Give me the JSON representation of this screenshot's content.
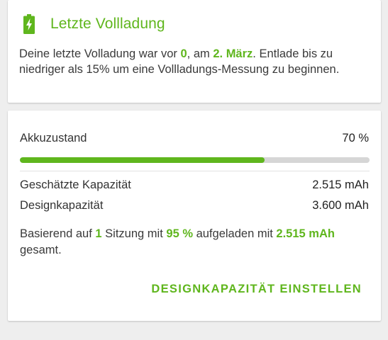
{
  "colors": {
    "accent": "#5fb61d",
    "track": "#d6d6d6"
  },
  "last_full_charge": {
    "icon": "battery-charging-icon",
    "title": "Letzte Vollladung",
    "desc_prefix": "Deine letzte Volladung war vor ",
    "desc_value": "0",
    "desc_mid": ", am ",
    "desc_date": "2. März",
    "desc_suffix": ". Entlade bis zu niedriger als 15% um eine Vollladungs-Messung zu beginnen."
  },
  "battery_health": {
    "label": "Akkuzustand",
    "value": "70 %",
    "progress_fraction": 0.7,
    "estimated_capacity_label": "Geschätzte Kapazität",
    "estimated_capacity_value": "2.515 mAh",
    "design_capacity_label": "Designkapazität",
    "design_capacity_value": "3.600 mAh",
    "summary_prefix": "Basierend auf ",
    "summary_sessions": "1",
    "summary_mid1": " Sitzung mit ",
    "summary_percent": "95 %",
    "summary_mid2": " aufgeladen mit ",
    "summary_total": "2.515 mAh",
    "summary_suffix": " gesamt.",
    "action_label": "DESIGNKAPAZITÄT EINSTELLEN"
  }
}
